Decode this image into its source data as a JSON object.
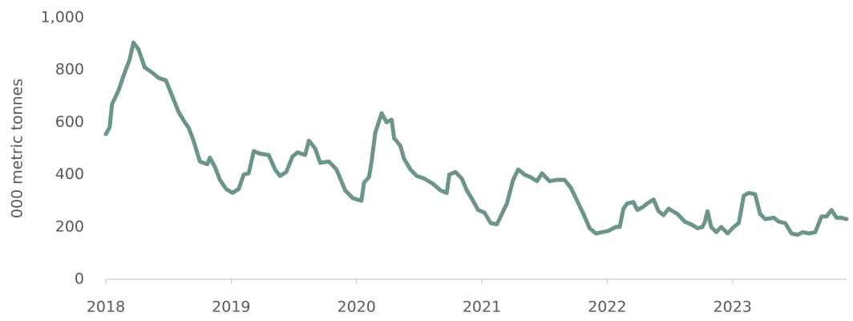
{
  "chart_data": {
    "type": "line",
    "y_label": "000 metric tonnes",
    "color": "#6b948b",
    "x": [
      2018.0,
      2018.03,
      2018.05,
      2018.1,
      2018.15,
      2018.19,
      2018.22,
      2018.26,
      2018.31,
      2018.37,
      2018.42,
      2018.48,
      2018.53,
      2018.58,
      2018.63,
      2018.66,
      2018.7,
      2018.75,
      2018.81,
      2018.83,
      2018.87,
      2018.91,
      2018.96,
      2019.01,
      2019.06,
      2019.1,
      2019.14,
      2019.18,
      2019.23,
      2019.3,
      2019.35,
      2019.39,
      2019.44,
      2019.49,
      2019.53,
      2019.59,
      2019.62,
      2019.67,
      2019.71,
      2019.78,
      2019.84,
      2019.91,
      2019.97,
      2020.04,
      2020.06,
      2020.1,
      2020.12,
      2020.15,
      2020.17,
      2020.2,
      2020.24,
      2020.28,
      2020.3,
      2020.35,
      2020.38,
      2020.43,
      2020.48,
      2020.54,
      2020.61,
      2020.67,
      2020.72,
      2020.74,
      2020.79,
      2020.84,
      2020.88,
      2020.93,
      2020.97,
      2021.02,
      2021.07,
      2021.12,
      2021.15,
      2021.2,
      2021.25,
      2021.29,
      2021.34,
      2021.39,
      2021.44,
      2021.48,
      2021.54,
      2021.6,
      2021.66,
      2021.71,
      2021.76,
      2021.81,
      2021.86,
      2021.91,
      2021.96,
      2022.01,
      2022.07,
      2022.1,
      2022.13,
      2022.16,
      2022.21,
      2022.24,
      2022.28,
      2022.32,
      2022.37,
      2022.41,
      2022.45,
      2022.49,
      2022.56,
      2022.62,
      2022.67,
      2022.72,
      2022.76,
      2022.78,
      2022.8,
      2022.83,
      2022.87,
      2022.91,
      2022.96,
      2023.01,
      2023.05,
      2023.09,
      2023.13,
      2023.18,
      2023.22,
      2023.26,
      2023.33,
      2023.37,
      2023.42,
      2023.47,
      2023.52,
      2023.56,
      2023.61,
      2023.66,
      2023.71,
      2023.75,
      2023.79,
      2023.83,
      2023.87,
      2023.91
    ],
    "values": [
      555,
      580,
      670,
      720,
      790,
      840,
      905,
      880,
      810,
      790,
      770,
      760,
      700,
      640,
      600,
      580,
      530,
      450,
      440,
      465,
      430,
      380,
      345,
      330,
      345,
      400,
      405,
      490,
      480,
      475,
      420,
      395,
      410,
      470,
      485,
      475,
      530,
      500,
      445,
      450,
      420,
      340,
      310,
      300,
      370,
      390,
      450,
      560,
      590,
      635,
      600,
      610,
      540,
      510,
      460,
      420,
      395,
      385,
      365,
      340,
      330,
      400,
      410,
      385,
      340,
      300,
      265,
      255,
      215,
      210,
      240,
      290,
      380,
      420,
      400,
      390,
      375,
      405,
      375,
      380,
      380,
      350,
      300,
      250,
      195,
      175,
      180,
      185,
      200,
      200,
      270,
      290,
      295,
      265,
      275,
      290,
      305,
      260,
      245,
      270,
      250,
      220,
      210,
      195,
      200,
      220,
      260,
      200,
      180,
      200,
      175,
      200,
      215,
      320,
      330,
      325,
      250,
      230,
      235,
      220,
      215,
      175,
      170,
      180,
      175,
      180,
      240,
      240,
      265,
      235,
      235,
      230
    ],
    "xlim": [
      2018,
      2023.91
    ],
    "xticks": [
      2018,
      2019,
      2020,
      2021,
      2022,
      2023
    ],
    "ylim": [
      0,
      1000
    ],
    "yticks": [
      0,
      200,
      400,
      600,
      800,
      {
        "value": 1000,
        "label": "1,000"
      }
    ]
  }
}
